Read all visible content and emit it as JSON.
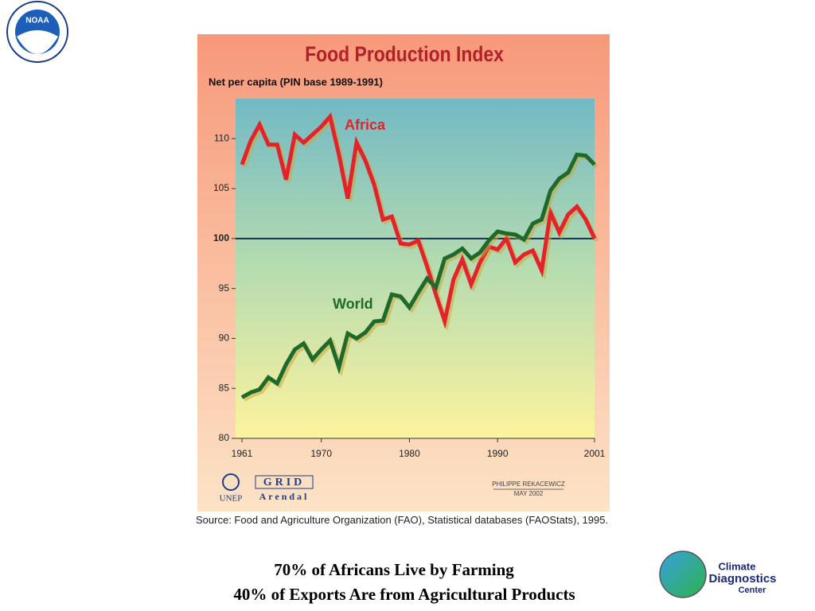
{
  "chart_data": {
    "type": "line",
    "title": "Food Production Index",
    "subtitle": "Net per capita (PIN base 1989-1991)",
    "x": [
      1961,
      1962,
      1963,
      1964,
      1965,
      1966,
      1967,
      1968,
      1969,
      1970,
      1971,
      1972,
      1973,
      1974,
      1975,
      1976,
      1977,
      1978,
      1979,
      1980,
      1981,
      1982,
      1983,
      1984,
      1985,
      1986,
      1987,
      1988,
      1989,
      1990,
      1991,
      1992,
      1993,
      1994,
      1995,
      1996,
      1997,
      1998,
      1999,
      2000,
      2001
    ],
    "series": [
      {
        "name": "Africa",
        "color": "#e3222b",
        "values": [
          107.4,
          109.8,
          111.4,
          109.4,
          109.4,
          105.9,
          110.4,
          109.6,
          110.4,
          111.2,
          112.2,
          108.4,
          104.0,
          109.6,
          107.8,
          105.4,
          101.9,
          102.2,
          99.5,
          99.4,
          99.8,
          97.2,
          94.4,
          91.7,
          95.9,
          97.9,
          95.4,
          97.6,
          99.2,
          98.9,
          100.0,
          97.6,
          98.4,
          98.8,
          96.8,
          102.6,
          100.6,
          102.4,
          103.2,
          101.9,
          100.0
        ]
      },
      {
        "name": "World",
        "color": "#1d6a2c",
        "values": [
          84.1,
          84.6,
          84.9,
          86.1,
          85.5,
          87.4,
          88.9,
          89.5,
          87.9,
          88.9,
          89.8,
          87.1,
          90.5,
          90.0,
          90.6,
          91.7,
          91.8,
          94.4,
          94.2,
          93.1,
          94.6,
          96.0,
          95.1,
          98.0,
          98.4,
          99.0,
          98.0,
          98.6,
          99.8,
          100.7,
          100.5,
          100.4,
          99.9,
          101.5,
          101.9,
          104.8,
          106.0,
          106.6,
          108.4,
          108.3,
          107.4
        ]
      }
    ],
    "xlim": [
      1961,
      2001
    ],
    "xticks": [
      1961,
      1970,
      1980,
      1990,
      2001
    ],
    "ylim": [
      80,
      114
    ],
    "yticks": [
      80,
      85,
      90,
      95,
      100,
      105,
      110
    ],
    "reference_line": 100,
    "source": "Source: Food and Agriculture Organization (FAO), Statistical databases (FAOStats), 1995.",
    "credit": [
      "PHILIPPE REKACEWICZ",
      "MAY 2002"
    ],
    "logos": [
      "UNEP",
      "GRID",
      "Arendal"
    ]
  },
  "slide": {
    "caption": [
      "70% of Africans Live by Farming",
      "40% of Exports Are from Agricultural Products"
    ],
    "noaa": "NOAA",
    "cdc": [
      "Climate",
      "Diagnostics",
      "Center"
    ]
  }
}
